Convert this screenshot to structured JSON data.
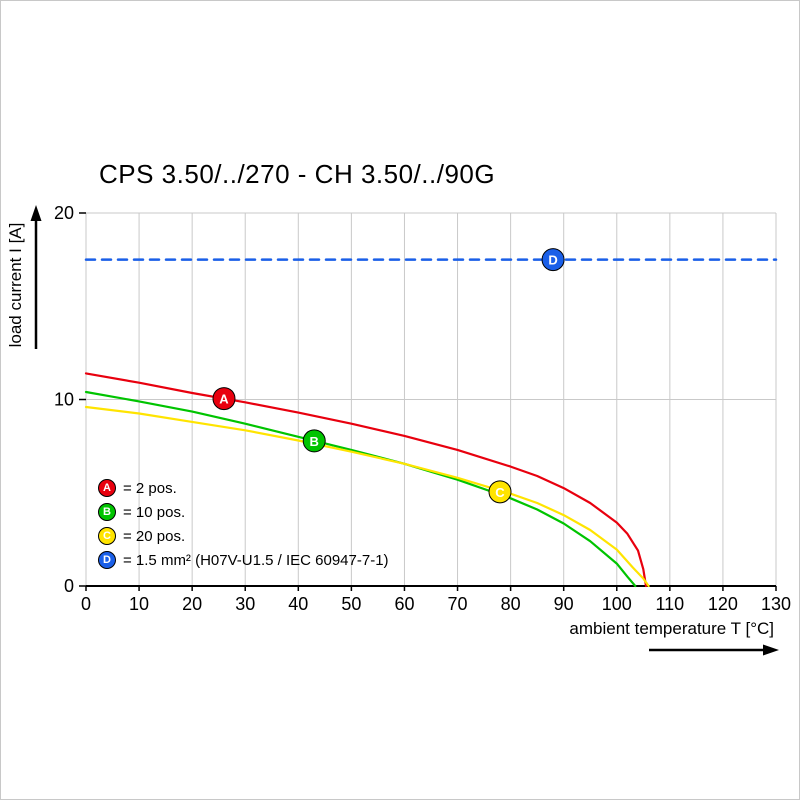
{
  "page": {
    "background": "#ffffff",
    "border_color": "#c8c8c8"
  },
  "chart_data": {
    "type": "line",
    "title": "CPS 3.50/../270 - CH 3.50/../90G",
    "xlabel": "ambient temperature T [°C]",
    "ylabel": "load current I [A]",
    "xlim": [
      0,
      130
    ],
    "ylim": [
      0,
      20
    ],
    "x_ticks": [
      0,
      10,
      20,
      30,
      40,
      50,
      60,
      70,
      80,
      90,
      100,
      110,
      120,
      130
    ],
    "y_ticks": [
      0,
      10,
      20
    ],
    "grid": true,
    "grid_color": "#c9c9c9",
    "legend_position": "bottom-left-inside",
    "series": [
      {
        "name": "A",
        "label": "= 2 pos.",
        "color": "#e8000e",
        "style": "solid",
        "points": [
          [
            0,
            11.4
          ],
          [
            10,
            10.9
          ],
          [
            20,
            10.35
          ],
          [
            30,
            9.85
          ],
          [
            40,
            9.3
          ],
          [
            50,
            8.7
          ],
          [
            60,
            8.05
          ],
          [
            70,
            7.3
          ],
          [
            80,
            6.4
          ],
          [
            85,
            5.9
          ],
          [
            90,
            5.25
          ],
          [
            95,
            4.45
          ],
          [
            100,
            3.4
          ],
          [
            102,
            2.8
          ],
          [
            104,
            1.9
          ],
          [
            105,
            0.9
          ],
          [
            105.5,
            0
          ]
        ]
      },
      {
        "name": "B",
        "label": "= 10 pos.",
        "color": "#00c400",
        "style": "solid",
        "points": [
          [
            0,
            10.4
          ],
          [
            10,
            9.9
          ],
          [
            20,
            9.35
          ],
          [
            30,
            8.7
          ],
          [
            40,
            8.0
          ],
          [
            50,
            7.3
          ],
          [
            60,
            6.55
          ],
          [
            70,
            5.7
          ],
          [
            80,
            4.7
          ],
          [
            85,
            4.1
          ],
          [
            90,
            3.35
          ],
          [
            95,
            2.4
          ],
          [
            100,
            1.2
          ],
          [
            102,
            0.5
          ],
          [
            103.5,
            0
          ]
        ]
      },
      {
        "name": "C",
        "label": "= 20 pos.",
        "color": "#ffe400",
        "style": "solid",
        "points": [
          [
            0,
            9.6
          ],
          [
            10,
            9.25
          ],
          [
            20,
            8.8
          ],
          [
            30,
            8.35
          ],
          [
            40,
            7.8
          ],
          [
            50,
            7.2
          ],
          [
            60,
            6.55
          ],
          [
            70,
            5.8
          ],
          [
            80,
            4.95
          ],
          [
            85,
            4.45
          ],
          [
            90,
            3.8
          ],
          [
            95,
            3.0
          ],
          [
            100,
            1.95
          ],
          [
            103,
            1.0
          ],
          [
            105,
            0.4
          ],
          [
            106,
            0
          ]
        ]
      },
      {
        "name": "D",
        "label": "= 1.5 mm² (H07V-U1.5 / IEC 60947-7-1)",
        "color": "#1a5fe8",
        "style": "dashed",
        "points": [
          [
            0,
            17.5
          ],
          [
            130,
            17.5
          ]
        ]
      }
    ],
    "markers": [
      {
        "letter": "A",
        "x": 26,
        "y": 10.05,
        "color": "#e8000e"
      },
      {
        "letter": "B",
        "x": 43,
        "y": 7.78,
        "color": "#00c400"
      },
      {
        "letter": "C",
        "x": 78,
        "y": 5.05,
        "color": "#ffe400"
      },
      {
        "letter": "D",
        "x": 88,
        "y": 17.5,
        "color": "#1a5fe8"
      }
    ]
  }
}
